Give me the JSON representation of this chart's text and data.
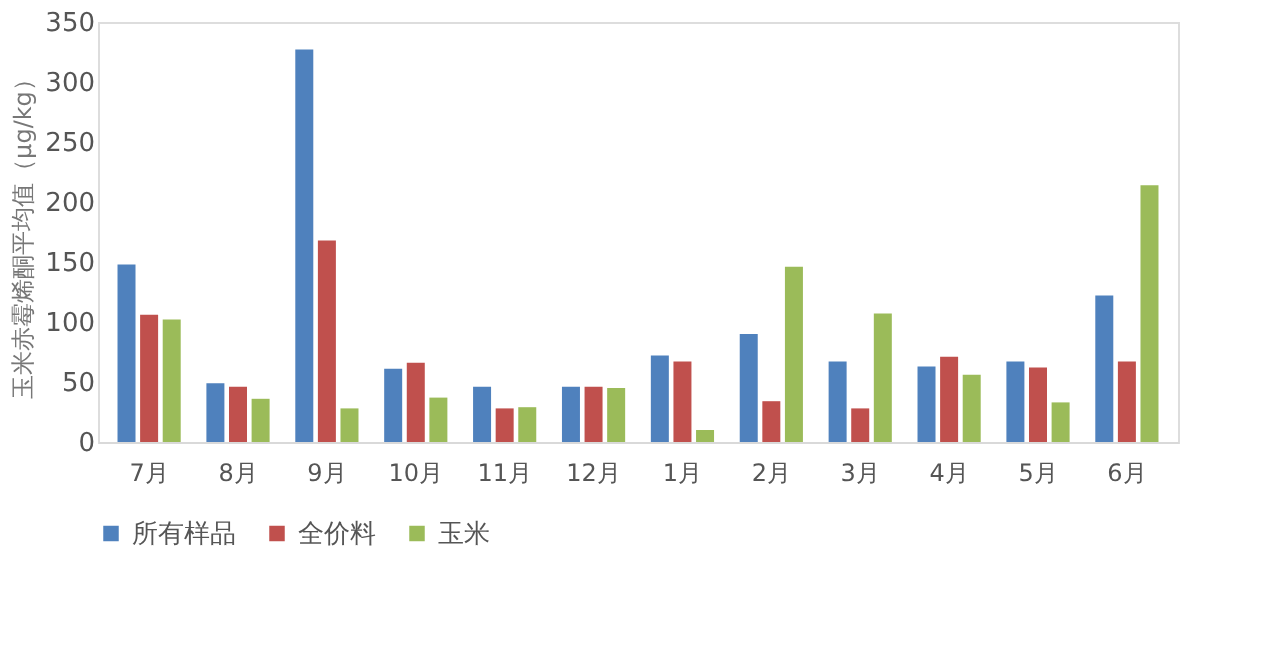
{
  "chart_data": {
    "type": "bar",
    "ylabel": "玉米赤霉烯酮平均值（μg/kg）",
    "categories": [
      "7月",
      "8月",
      "9月",
      "10月",
      "11月",
      "12月",
      "1月",
      "2月",
      "3月",
      "4月",
      "5月",
      "6月"
    ],
    "series": [
      {
        "name": "所有样品",
        "color": "#4f81bd",
        "values": [
          148,
          49,
          327,
          61,
          46,
          46,
          72,
          90,
          67,
          63,
          67,
          122
        ]
      },
      {
        "name": "全价料",
        "color": "#c0504d",
        "values": [
          106,
          46,
          168,
          66,
          28,
          46,
          67,
          34,
          28,
          71,
          62,
          67
        ]
      },
      {
        "name": "玉米",
        "color": "#9bbb59",
        "values": [
          102,
          36,
          28,
          37,
          29,
          45,
          10,
          146,
          107,
          56,
          33,
          214
        ]
      }
    ],
    "ylim": [
      0,
      350
    ],
    "yticks": [
      0,
      50,
      100,
      150,
      200,
      250,
      300,
      350
    ],
    "grid": false,
    "legend": "bottom"
  }
}
